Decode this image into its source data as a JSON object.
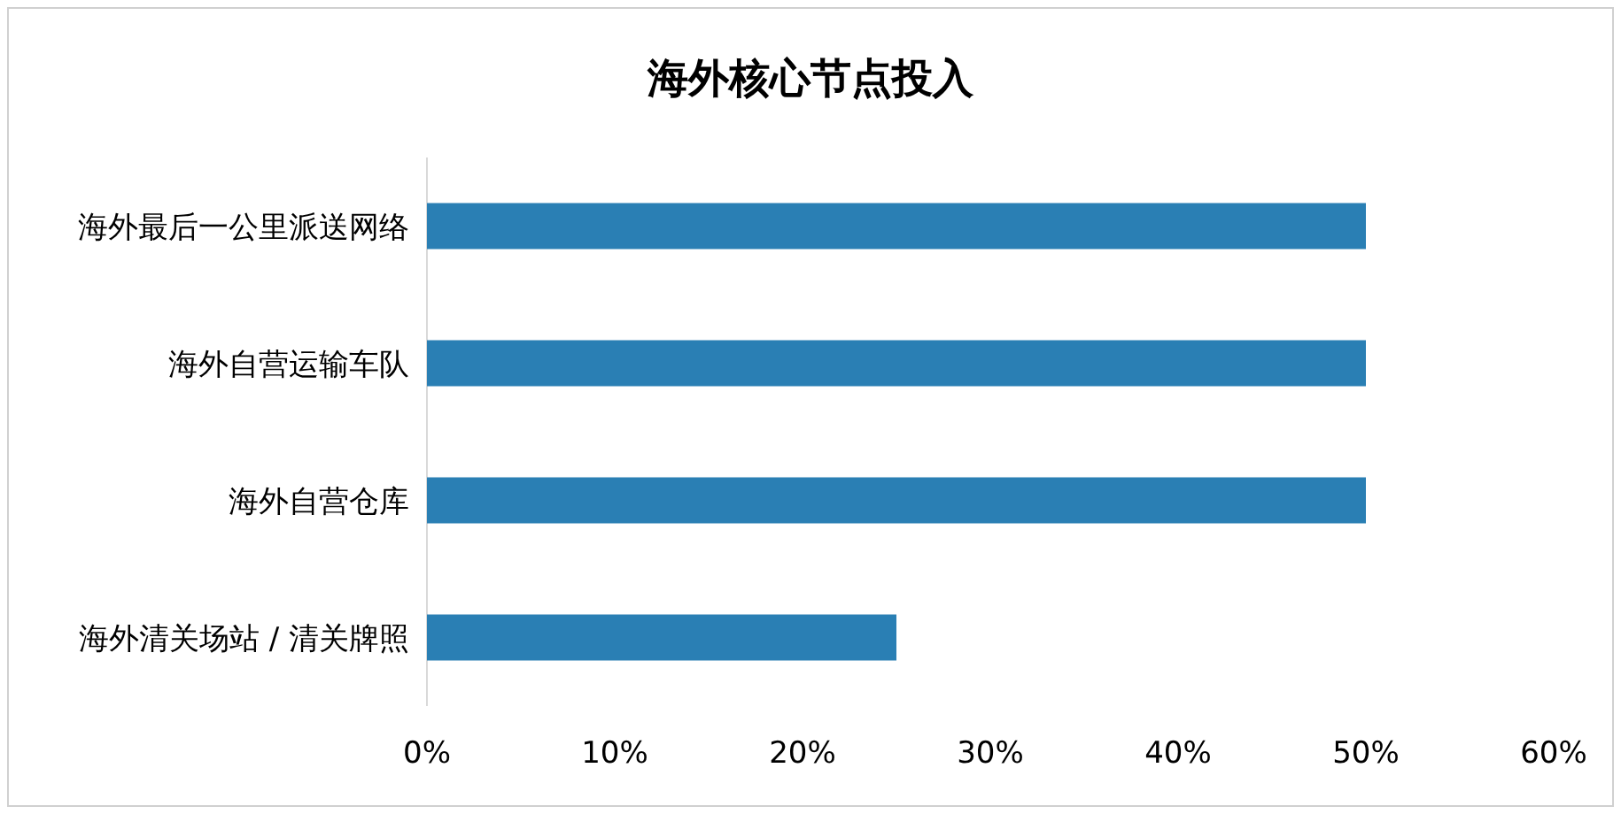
{
  "chart_data": {
    "type": "bar",
    "orientation": "horizontal",
    "title": "海外核心节点投入",
    "categories": [
      "海外最后一公里派送网络",
      "海外自营运输车队",
      "海外自营仓库",
      "海外清关场站 / 清关牌照"
    ],
    "values": [
      50,
      50,
      50,
      25
    ],
    "color": "#2a7fb4",
    "xlim": [
      0,
      60
    ],
    "xticks": [
      {
        "value": 0,
        "label": "0%"
      },
      {
        "value": 10,
        "label": "10%"
      },
      {
        "value": 20,
        "label": "20%"
      },
      {
        "value": 30,
        "label": "30%"
      },
      {
        "value": 40,
        "label": "40%"
      },
      {
        "value": 50,
        "label": "50%"
      },
      {
        "value": 60,
        "label": "60%"
      }
    ],
    "grid": false
  }
}
